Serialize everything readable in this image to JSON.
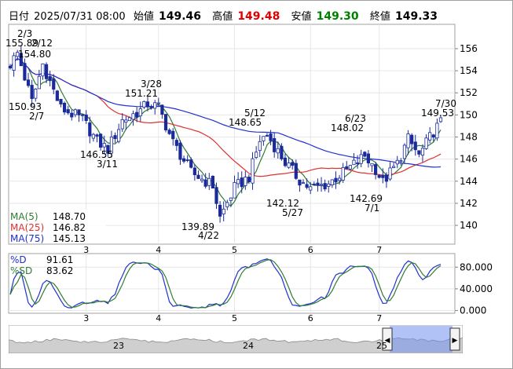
{
  "header": {
    "date_label": "日付",
    "datetime": "2025/07/31 08:00",
    "open_label": "始値",
    "open": "149.46",
    "high_label": "高値",
    "high": "149.48",
    "low_label": "安値",
    "low": "149.30",
    "close_label": "終値",
    "close": "149.33",
    "colors": {
      "high": "#e00000",
      "low": "#008000",
      "normal": "#000000"
    }
  },
  "price_axis": {
    "ticks": [
      "156",
      "154",
      "152",
      "150",
      "148",
      "146",
      "144",
      "142",
      "140"
    ],
    "range": [
      138.3,
      158.2
    ]
  },
  "x_months": [
    "3",
    "4",
    "5",
    "6",
    "7"
  ],
  "ma_legend": [
    {
      "label": "MA(5)",
      "value": "148.70",
      "color": "#2e7d32"
    },
    {
      "label": "MA(25)",
      "value": "146.82",
      "color": "#e03030"
    },
    {
      "label": "MA(75)",
      "value": "145.13",
      "color": "#2030d0"
    }
  ],
  "annotations": [
    {
      "date": "2/3",
      "price": "155.89"
    },
    {
      "date": "2/12",
      "price": "154.80"
    },
    {
      "date": "2/7",
      "price": "150.93"
    },
    {
      "date": "3/11",
      "price": "146.55"
    },
    {
      "date": "3/28",
      "price": "151.21"
    },
    {
      "date": "4/22",
      "price": "139.89"
    },
    {
      "date": "5/12",
      "price": "148.65"
    },
    {
      "date": "5/27",
      "price": "142.12"
    },
    {
      "date": "6/23",
      "price": "148.02"
    },
    {
      "date": "7/1",
      "price": "142.69"
    },
    {
      "date": "7/30",
      "price": "149.53"
    }
  ],
  "oscillator": {
    "legend": [
      {
        "label": "%D",
        "value": "91.61",
        "color": "#2030d0"
      },
      {
        "label": "%SD",
        "value": "83.62",
        "color": "#2e7d32"
      }
    ],
    "ticks": [
      "80.000",
      "40.000",
      "0.000"
    ],
    "range": [
      -5,
      105
    ]
  },
  "navigator": {
    "labels": [
      "23",
      "24",
      "25"
    ]
  },
  "colors": {
    "up_candle": "#ffffff",
    "down_candle": "#1a2a9a",
    "candle_outline": "#1a2a9a"
  }
}
